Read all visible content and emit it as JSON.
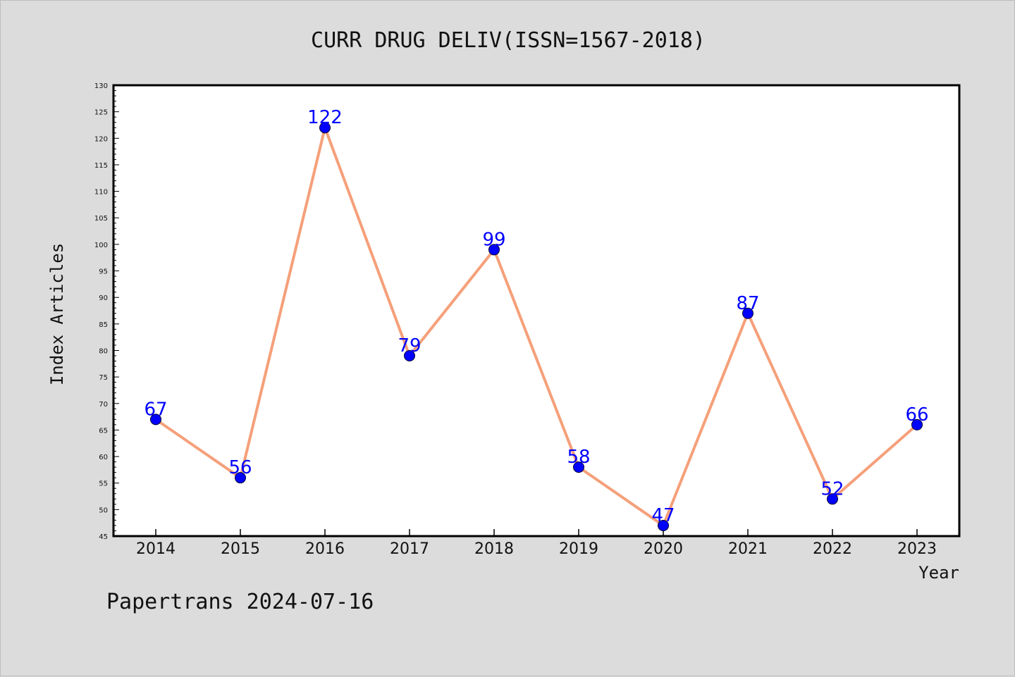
{
  "chart_data": {
    "type": "line",
    "title": "CURR DRUG DELIV(ISSN=1567-2018)",
    "xlabel": "Year",
    "ylabel": "Index Articles",
    "categories": [
      "2014",
      "2015",
      "2016",
      "2017",
      "2018",
      "2019",
      "2020",
      "2021",
      "2022",
      "2023"
    ],
    "series": [
      {
        "values": [
          67,
          56,
          122,
          79,
          99,
          58,
          47,
          87,
          52,
          66
        ]
      }
    ],
    "ylim": [
      45,
      130
    ],
    "ymajor_step": 5,
    "yminor_step": 1,
    "grid": false,
    "legend": "none",
    "colors": {
      "line": "#f5a07a",
      "marker": "#0000ff",
      "marker_edge": "#000033",
      "label": "#0000ff",
      "plot_bg": "#ffffff",
      "page_bg": "#dcdcdc"
    }
  },
  "footer": "Papertrans 2024-07-16"
}
